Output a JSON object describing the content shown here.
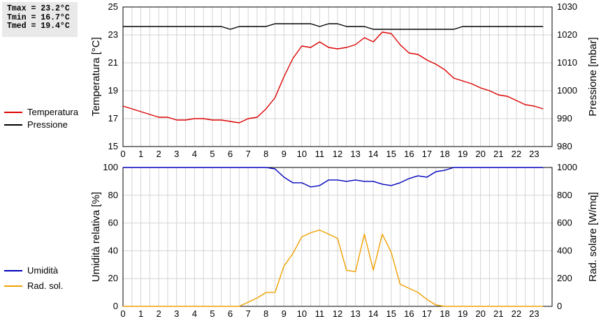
{
  "stats": {
    "tmax": "Tmax = 23.2°C",
    "tmin": "Tmin = 16.7°C",
    "tmed": "Tmed = 19.4°C"
  },
  "chart_data": [
    {
      "type": "line",
      "x_ticks": [
        0,
        1,
        2,
        3,
        4,
        5,
        6,
        7,
        8,
        9,
        10,
        11,
        12,
        13,
        14,
        15,
        16,
        17,
        18,
        19,
        20,
        21,
        22,
        23
      ],
      "xlim": [
        0,
        24
      ],
      "ylabel": "Temperatura [°C]",
      "ylim": [
        15,
        25
      ],
      "y_ticks": [
        15,
        17,
        19,
        21,
        23,
        25
      ],
      "y2label": "Pressione [mbar]",
      "y2lim": [
        980,
        1030
      ],
      "y2_ticks": [
        980,
        990,
        1000,
        1010,
        1020,
        1030
      ],
      "grid": true,
      "legend_position": "left",
      "series": [
        {
          "name": "Temperatura",
          "axis": "left",
          "color": "#dd0000",
          "x": [
            0,
            0.5,
            1,
            1.5,
            2,
            2.5,
            3,
            3.5,
            4,
            4.5,
            5,
            5.5,
            6,
            6.5,
            7,
            7.5,
            8,
            8.5,
            9,
            9.5,
            10,
            10.5,
            11,
            11.5,
            12,
            12.5,
            13,
            13.5,
            14,
            14.5,
            15,
            15.5,
            16,
            16.5,
            17,
            17.5,
            18,
            18.5,
            19,
            19.5,
            20,
            20.5,
            21,
            21.5,
            22,
            22.5,
            23,
            23.5
          ],
          "y": [
            17.9,
            17.7,
            17.5,
            17.3,
            17.1,
            17.1,
            16.9,
            16.9,
            17.0,
            17.0,
            16.9,
            16.9,
            16.8,
            16.7,
            17.0,
            17.1,
            17.7,
            18.5,
            20.0,
            21.3,
            22.2,
            22.1,
            22.5,
            22.1,
            22.0,
            22.1,
            22.3,
            22.8,
            22.5,
            23.2,
            23.1,
            22.3,
            21.7,
            21.6,
            21.2,
            20.9,
            20.5,
            19.9,
            19.7,
            19.5,
            19.2,
            19.0,
            18.7,
            18.6,
            18.3,
            18.0,
            17.9,
            17.7
          ]
        },
        {
          "name": "Pressione",
          "axis": "right",
          "color": "#000000",
          "x": [
            0,
            0.5,
            1,
            1.5,
            2,
            2.5,
            3,
            3.5,
            4,
            4.5,
            5,
            5.5,
            6,
            6.5,
            7,
            7.5,
            8,
            8.5,
            9,
            9.5,
            10,
            10.5,
            11,
            11.5,
            12,
            12.5,
            13,
            13.5,
            14,
            14.5,
            15,
            15.5,
            16,
            16.5,
            17,
            17.5,
            18,
            18.5,
            19,
            19.5,
            20,
            20.5,
            21,
            21.5,
            22,
            22.5,
            23,
            23.5
          ],
          "y": [
            1023,
            1023,
            1023,
            1023,
            1023,
            1023,
            1023,
            1023,
            1023,
            1023,
            1023,
            1023,
            1022,
            1023,
            1023,
            1023,
            1023,
            1024,
            1024,
            1024,
            1024,
            1024,
            1023,
            1024,
            1024,
            1023,
            1023,
            1023,
            1022,
            1022,
            1022,
            1022,
            1022,
            1022,
            1022,
            1022,
            1022,
            1022,
            1023,
            1023,
            1023,
            1023,
            1023,
            1023,
            1023,
            1023,
            1023,
            1023
          ]
        }
      ]
    },
    {
      "type": "line",
      "x_ticks": [
        0,
        1,
        2,
        3,
        4,
        5,
        6,
        7,
        8,
        9,
        10,
        11,
        12,
        13,
        14,
        15,
        16,
        17,
        18,
        19,
        20,
        21,
        22,
        23
      ],
      "xlim": [
        0,
        24
      ],
      "ylabel": "Umidità relativa [%]",
      "ylim": [
        0,
        100
      ],
      "y_ticks": [
        0,
        20,
        40,
        60,
        80,
        100
      ],
      "y2label": "Rad. solare [W/mq]",
      "y2lim": [
        0,
        1000
      ],
      "y2_ticks": [
        0,
        200,
        400,
        600,
        800,
        1000
      ],
      "grid": true,
      "legend_position": "left",
      "series": [
        {
          "name": "Umidità",
          "axis": "left",
          "color": "#0000bb",
          "x": [
            0,
            0.5,
            1,
            1.5,
            2,
            2.5,
            3,
            3.5,
            4,
            4.5,
            5,
            5.5,
            6,
            6.5,
            7,
            7.5,
            8,
            8.5,
            9,
            9.5,
            10,
            10.5,
            11,
            11.5,
            12,
            12.5,
            13,
            13.5,
            14,
            14.5,
            15,
            15.5,
            16,
            16.5,
            17,
            17.5,
            18,
            18.5,
            19,
            19.5,
            20,
            20.5,
            21,
            21.5,
            22,
            22.5,
            23,
            23.5
          ],
          "y": [
            100,
            100,
            100,
            100,
            100,
            100,
            100,
            100,
            100,
            100,
            100,
            100,
            100,
            100,
            100,
            100,
            100,
            99,
            93,
            89,
            89,
            86,
            87,
            91,
            91,
            90,
            91,
            90,
            90,
            88,
            87,
            89,
            92,
            94,
            93,
            97,
            98,
            100,
            100,
            100,
            100,
            100,
            100,
            100,
            100,
            100,
            100,
            100
          ]
        },
        {
          "name": "Rad. sol.",
          "axis": "right",
          "color": "#f0a000",
          "x": [
            0,
            0.5,
            1,
            1.5,
            2,
            2.5,
            3,
            3.5,
            4,
            4.5,
            5,
            5.5,
            6,
            6.5,
            7,
            7.5,
            8,
            8.5,
            9,
            9.5,
            10,
            10.5,
            11,
            11.5,
            12,
            12.5,
            13,
            13.5,
            14,
            14.5,
            15,
            15.5,
            16,
            16.5,
            17,
            17.5,
            18,
            18.5,
            19,
            19.5,
            20,
            20.5,
            21,
            21.5,
            22,
            22.5,
            23,
            23.5
          ],
          "y": [
            0,
            0,
            0,
            0,
            0,
            0,
            0,
            0,
            0,
            0,
            0,
            0,
            0,
            0,
            30,
            60,
            100,
            100,
            290,
            380,
            500,
            530,
            550,
            520,
            490,
            260,
            250,
            520,
            260,
            520,
            390,
            160,
            130,
            100,
            50,
            10,
            0,
            0,
            0,
            0,
            0,
            0,
            0,
            0,
            0,
            0,
            0,
            0
          ]
        }
      ]
    }
  ]
}
